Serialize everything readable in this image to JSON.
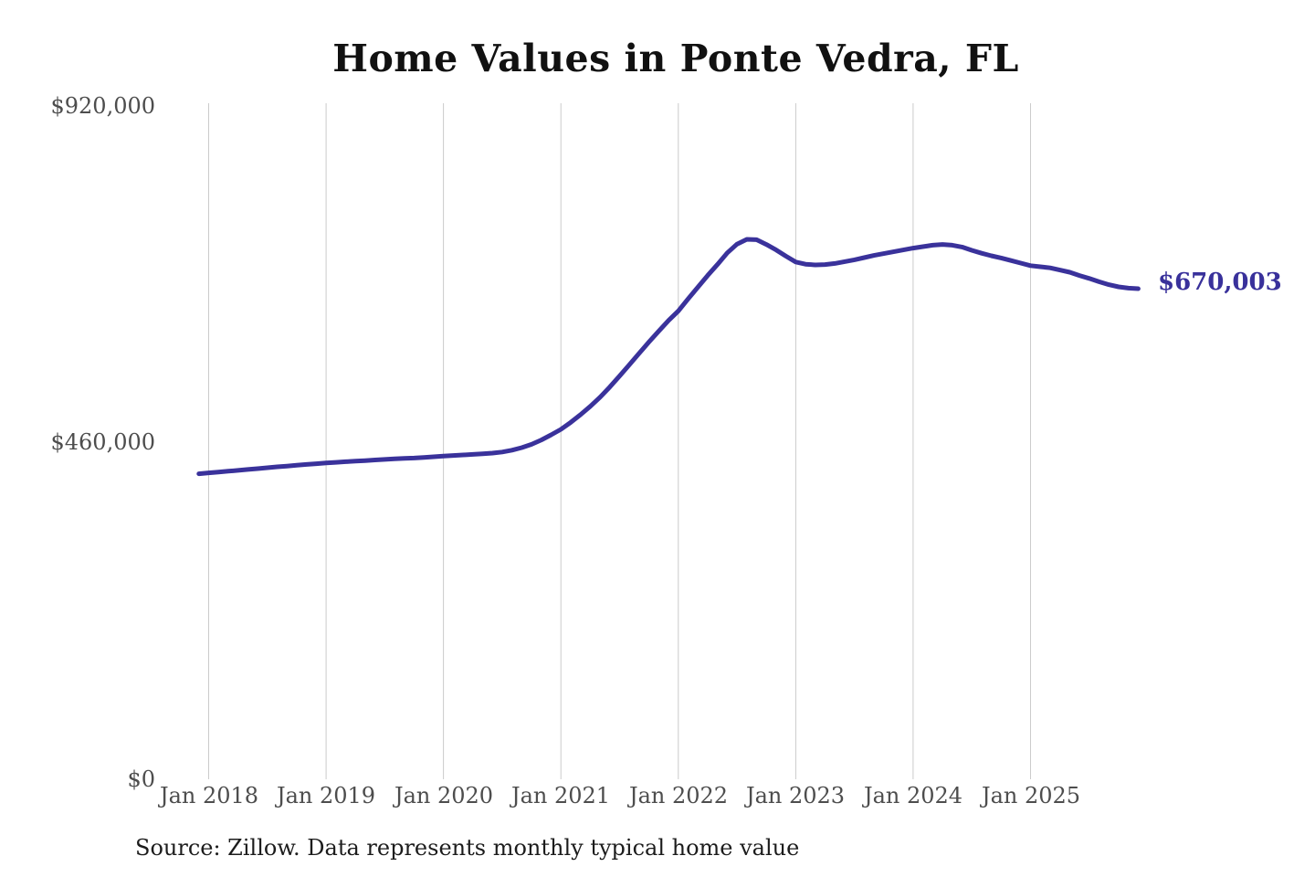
{
  "title": "Home Values in Ponte Vedra, FL",
  "source_note": "Source: Zillow. Data represents monthly typical home value",
  "end_label": "$670,003",
  "colors": {
    "line": "#3a329b",
    "grid": "#cbcbcb",
    "axis_text": "#4d4d4d",
    "title_text": "#111111",
    "source_text": "#1c1c1c",
    "background": "#ffffff"
  },
  "y_axis": {
    "ticks": [
      "$0",
      "$460,000",
      "$920,000"
    ]
  },
  "x_axis": {
    "ticks": [
      "Jan 2018",
      "Jan 2019",
      "Jan 2020",
      "Jan 2021",
      "Jan 2022",
      "Jan 2023",
      "Jan 2024",
      "Jan 2025"
    ]
  },
  "chart_data": {
    "type": "line",
    "title": "Home Values in Ponte Vedra, FL",
    "ylabel": "",
    "xlabel": "",
    "ylim": [
      0,
      920000
    ],
    "y_tick_values": [
      0,
      460000,
      920000
    ],
    "y_tick_labels": [
      "$0",
      "$460,000",
      "$920,000"
    ],
    "x_tick_labels": [
      "Jan 2018",
      "Jan 2019",
      "Jan 2020",
      "Jan 2021",
      "Jan 2022",
      "Jan 2023",
      "Jan 2024",
      "Jan 2025"
    ],
    "grid": "vertical-only",
    "legend": "none",
    "frequency": "monthly",
    "start_month": "2017-12",
    "end_month": "2025-12",
    "months_before_first_tick": 1,
    "last_value": 670003,
    "last_value_label": "$670,003",
    "series": [
      {
        "name": "Typical home value",
        "values": [
          416800,
          418000,
          419100,
          420200,
          421400,
          422600,
          423800,
          425000,
          426200,
          427300,
          428400,
          429500,
          430500,
          431500,
          432400,
          433200,
          434000,
          434800,
          435600,
          436400,
          437100,
          437700,
          438300,
          439100,
          440000,
          441000,
          441800,
          442500,
          443200,
          444000,
          445000,
          446500,
          449000,
          452500,
          457000,
          463000,
          470000,
          477500,
          487000,
          497500,
          509000,
          521500,
          535500,
          550500,
          566000,
          581500,
          597000,
          612000,
          626500,
          639500,
          656000,
          672000,
          688000,
          703000,
          719000,
          731000,
          737500,
          737000,
          730500,
          723000,
          714500,
          706500,
          703500,
          702500,
          703000,
          704500,
          707000,
          709500,
          712500,
          715500,
          718000,
          720500,
          723000,
          725500,
          727500,
          729500,
          730500,
          729500,
          727000,
          722500,
          718500,
          715000,
          712000,
          708500,
          705000,
          701500,
          700000,
          698500,
          695500,
          692500,
          688000,
          684000,
          679500,
          675500,
          672500,
          670800,
          670003
        ]
      }
    ]
  }
}
